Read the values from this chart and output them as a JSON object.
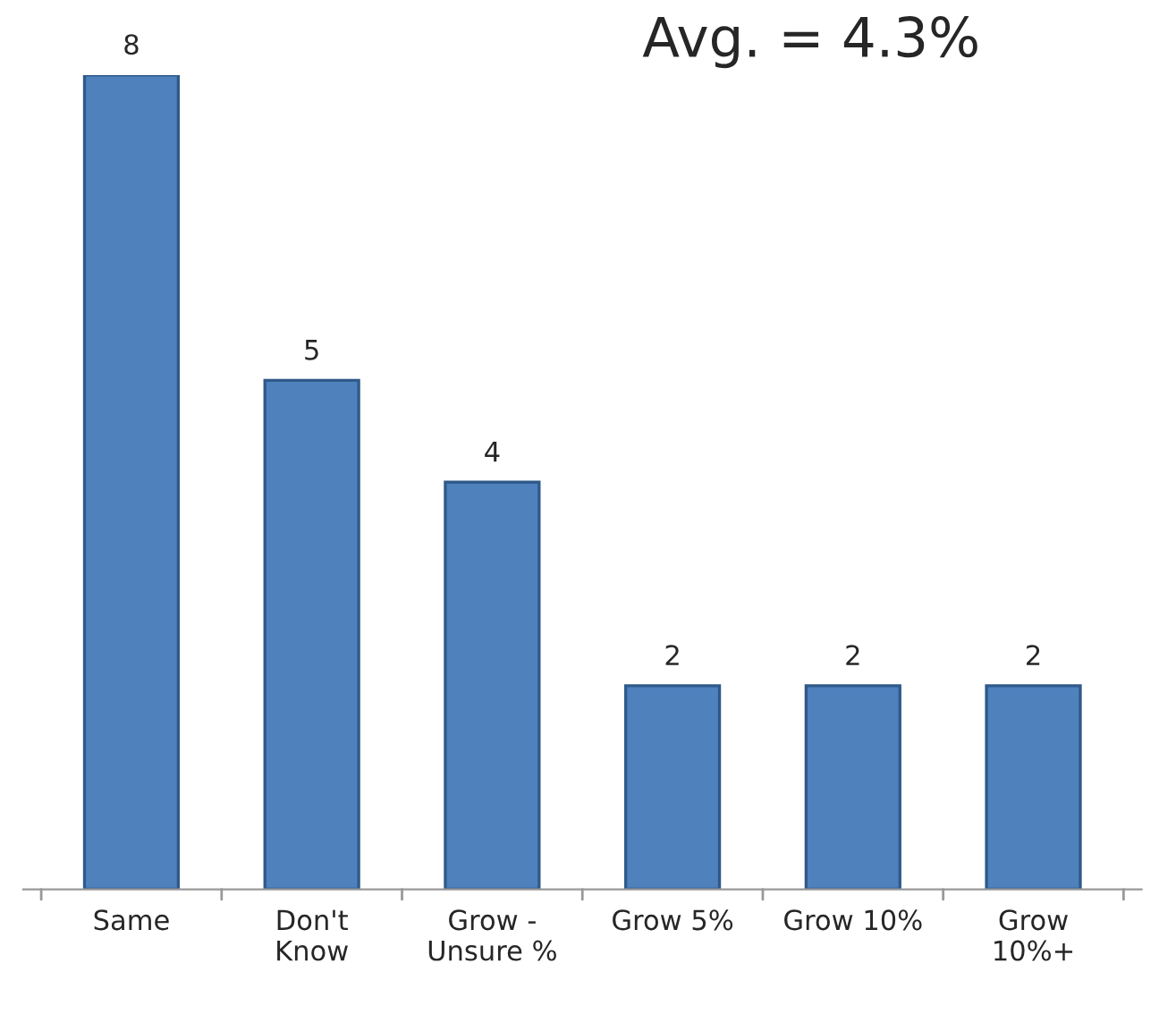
{
  "chart_data": {
    "type": "bar",
    "categories": [
      "Same",
      "Don't\nKnow",
      "Grow -\nUnsure %",
      "Grow 5%",
      "Grow 10%",
      "Grow\n10%+"
    ],
    "values": [
      8,
      5,
      4,
      2,
      2,
      2
    ],
    "color": "#4f81bd",
    "ylim": [
      0,
      8
    ],
    "data_labels": true,
    "tick_labels": "x",
    "grid": false,
    "legend": false,
    "annotations": [
      "Avg. = 4.3%"
    ]
  }
}
